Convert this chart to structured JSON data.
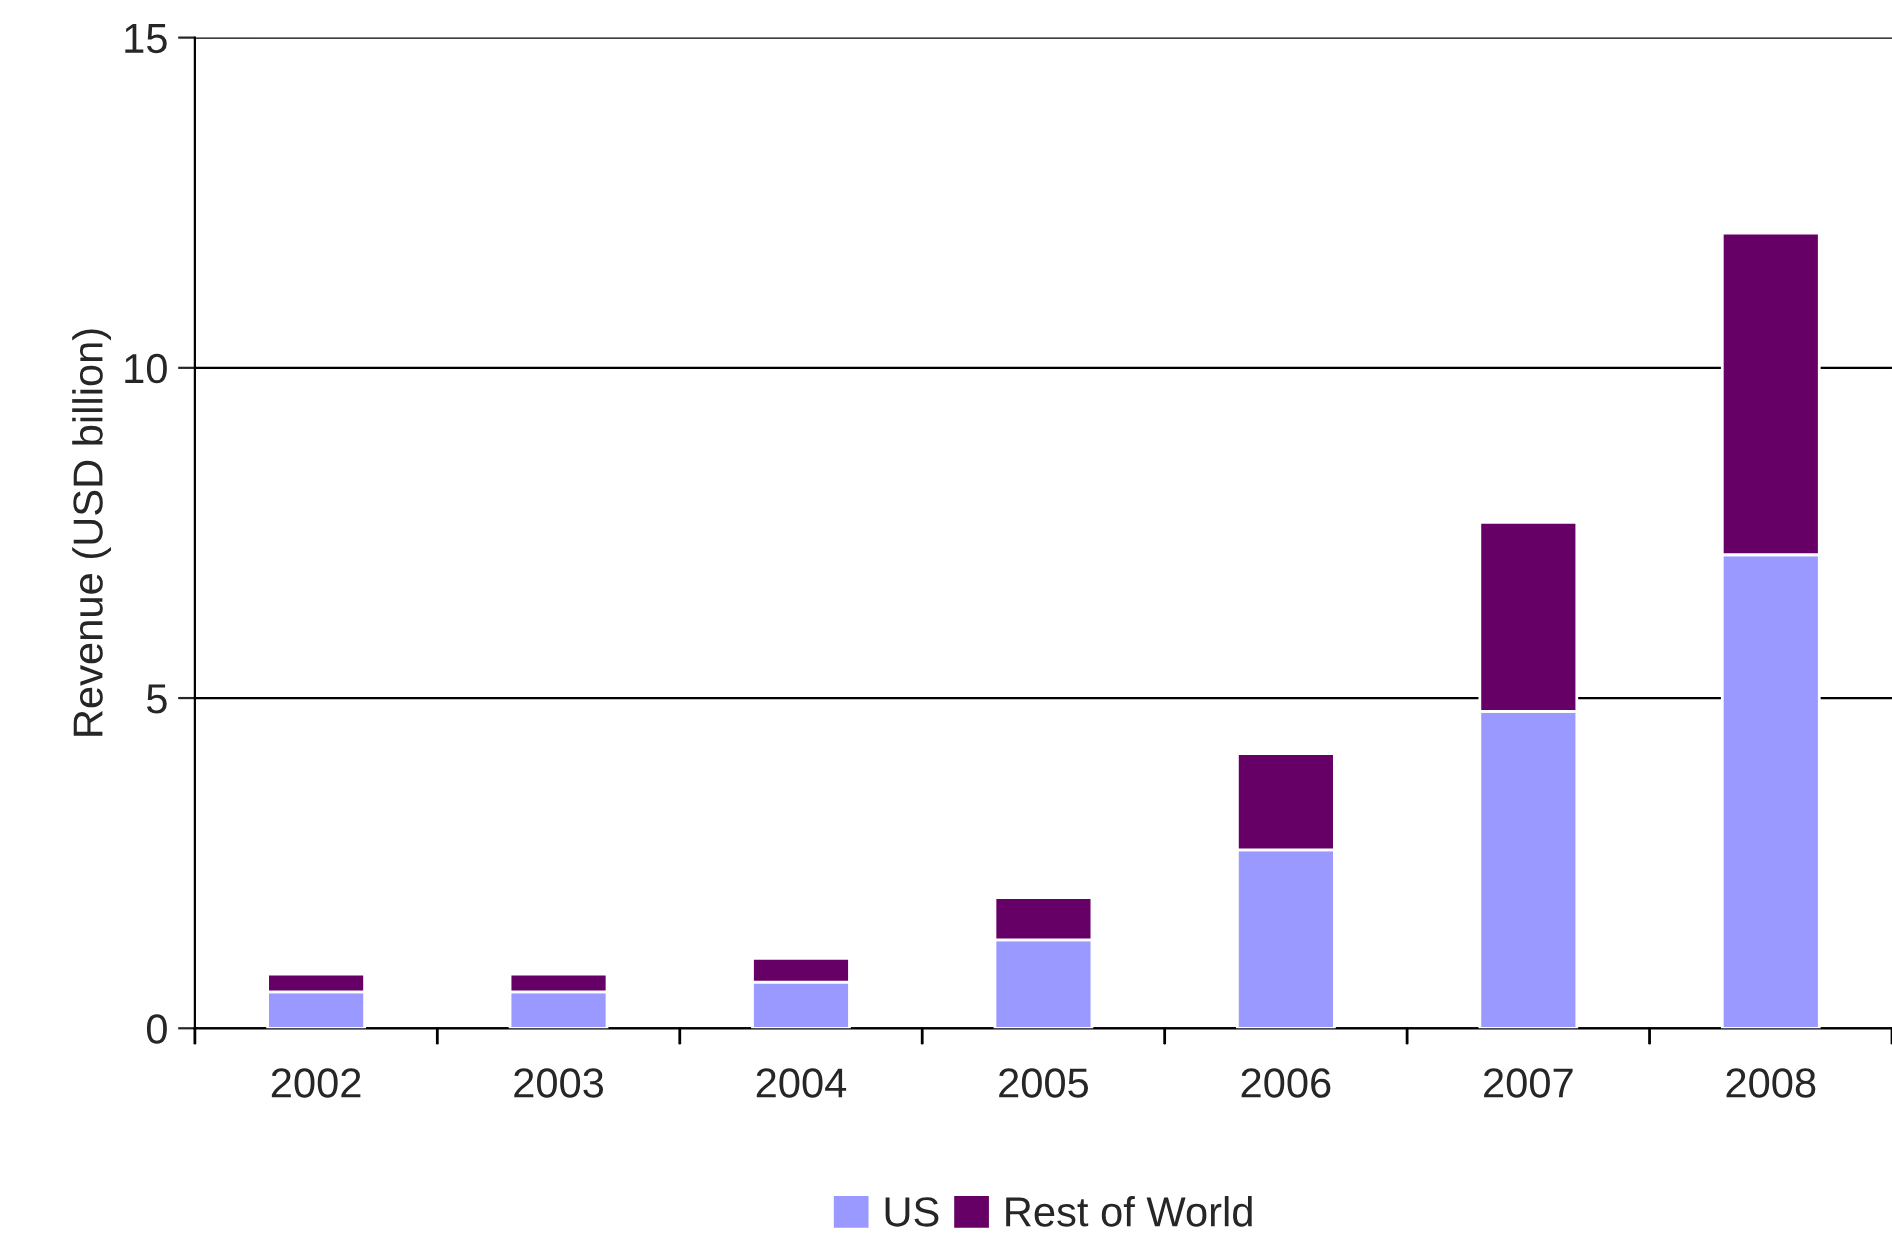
{
  "chart_data": {
    "type": "bar",
    "ylabel": "Revenue (USD billion)",
    "categories": [
      "2002",
      "2003",
      "2004",
      "2005",
      "2006",
      "2007",
      "2008"
    ],
    "series": [
      {
        "name": "US",
        "color": "#9999ff",
        "values": [
          0.55,
          0.55,
          0.7,
          1.34,
          2.7,
          4.8,
          7.17
        ]
      },
      {
        "name": "Rest of World",
        "color": "#660066",
        "values": [
          0.27,
          0.27,
          0.36,
          0.64,
          1.46,
          2.86,
          4.87
        ]
      }
    ],
    "stacked": true,
    "ylim": [
      0,
      15
    ],
    "yticks": [
      0,
      5,
      10,
      15
    ],
    "grid": "y",
    "legend": "bottom"
  }
}
